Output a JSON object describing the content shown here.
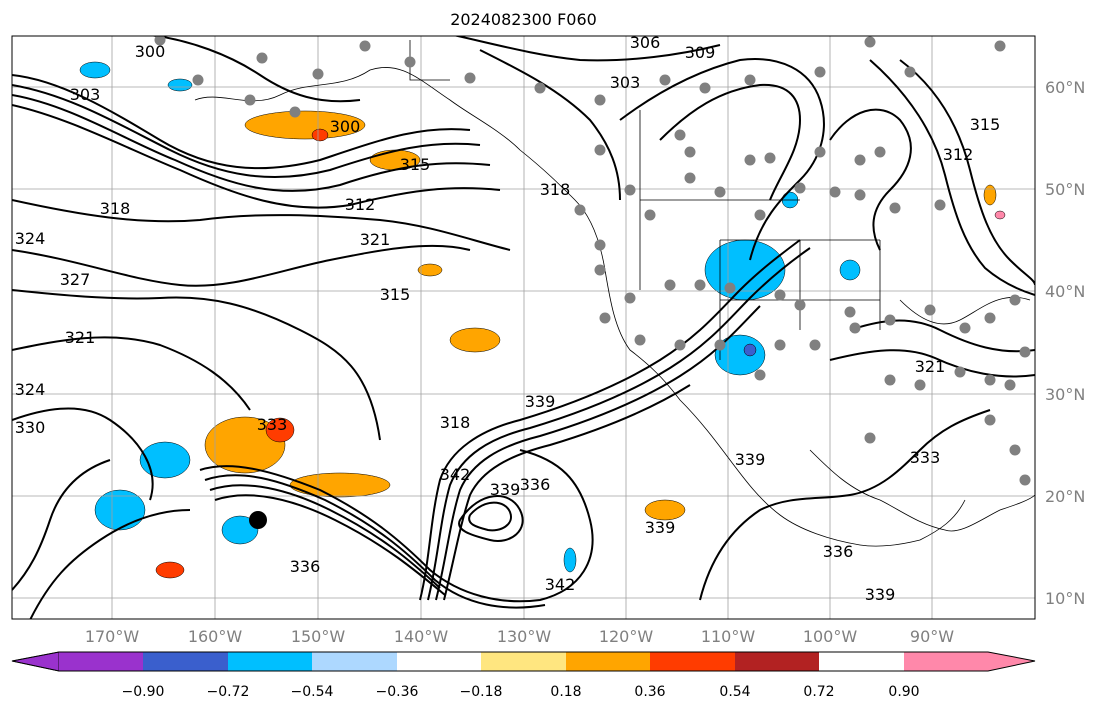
{
  "title": "2024082300 F060",
  "latitude_labels": [
    "60°N",
    "50°N",
    "40°N",
    "30°N",
    "20°N",
    "10°N"
  ],
  "longitude_labels": [
    "170°W",
    "160°W",
    "150°W",
    "140°W",
    "130°W",
    "120°W",
    "110°W",
    "100°W",
    "90°W"
  ],
  "contour_labels": [
    "300",
    "303",
    "306",
    "309",
    "303",
    "300",
    "315",
    "312",
    "318",
    "321",
    "324",
    "327",
    "315",
    "318",
    "321",
    "324",
    "330",
    "333",
    "318",
    "339",
    "342",
    "339",
    "336",
    "339",
    "336",
    "333",
    "315",
    "312",
    "321",
    "339",
    "336",
    "342",
    "339"
  ],
  "colorbar": {
    "ticks": [
      "−0.90",
      "−0.72",
      "−0.54",
      "−0.36",
      "−0.18",
      "0.18",
      "0.36",
      "0.54",
      "0.72",
      "0.90"
    ],
    "colors": [
      "#9a32cd",
      "#00008b",
      "#3a5fcd",
      "#00bfff",
      "#add8ff",
      "#ffffff",
      "#ffe680",
      "#ffa500",
      "#ff3c00",
      "#b22222",
      "#ff88aa"
    ]
  },
  "storm_marker": "black-dot"
}
